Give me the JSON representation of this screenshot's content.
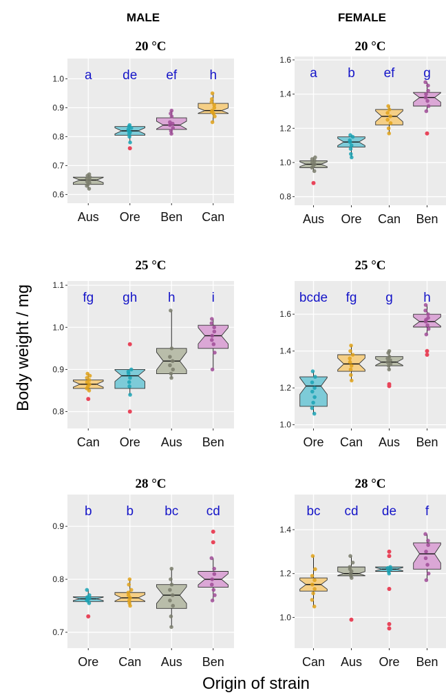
{
  "column_headers": {
    "male": "MALE",
    "female": "FEMALE"
  },
  "ylabel": "Body weight / mg",
  "xlabel": "Origin  of strain",
  "colors": {
    "Aus": "#b9bdaa",
    "Ore": "#7dcbd8",
    "Ben": "#dba7d6",
    "Can": "#f5cf86",
    "Aus_pt": "#7a7d6c",
    "Ore_pt": "#1aa3b5",
    "Ben_pt": "#a04c98",
    "Can_pt": "#e0a21a",
    "outlier": "#e8455a",
    "sig": "#1515c8",
    "panel_bg": "#ebebeb",
    "grid": "#ffffff"
  },
  "chart_data": [
    {
      "type": "box",
      "sex": "MALE",
      "title": "20 °C",
      "ylim": [
        0.57,
        1.07
      ],
      "yticks": [
        "0.6",
        "0.7",
        "0.8",
        "0.9",
        "1.0"
      ],
      "categories": [
        "Aus",
        "Ore",
        "Ben",
        "Can"
      ],
      "letters": [
        "a",
        "de",
        "ef",
        "h"
      ],
      "boxes": [
        {
          "q1": 0.635,
          "median": 0.65,
          "q3": 0.66,
          "wlo": 0.62,
          "whi": 0.67,
          "points": [
            0.62,
            0.63,
            0.635,
            0.64,
            0.645,
            0.65,
            0.655,
            0.66,
            0.665,
            0.67
          ],
          "outliers": []
        },
        {
          "q1": 0.805,
          "median": 0.82,
          "q3": 0.835,
          "wlo": 0.78,
          "whi": 0.84,
          "points": [
            0.78,
            0.8,
            0.81,
            0.815,
            0.82,
            0.825,
            0.83,
            0.835,
            0.84
          ],
          "outliers": [
            0.76
          ]
        },
        {
          "q1": 0.825,
          "median": 0.84,
          "q3": 0.865,
          "wlo": 0.81,
          "whi": 0.89,
          "points": [
            0.81,
            0.82,
            0.83,
            0.84,
            0.845,
            0.85,
            0.87,
            0.88,
            0.89
          ],
          "outliers": []
        },
        {
          "q1": 0.88,
          "median": 0.89,
          "q3": 0.915,
          "wlo": 0.85,
          "whi": 0.95,
          "points": [
            0.85,
            0.87,
            0.88,
            0.885,
            0.89,
            0.9,
            0.91,
            0.92,
            0.93,
            0.95
          ],
          "outliers": []
        }
      ]
    },
    {
      "type": "box",
      "sex": "FEMALE",
      "title": "20 °C",
      "ylim": [
        0.75,
        1.62
      ],
      "yticks": [
        "0.8",
        "1.0",
        "1.2",
        "1.4",
        "1.6"
      ],
      "categories": [
        "Aus",
        "Ore",
        "Can",
        "Ben"
      ],
      "letters": [
        "a",
        "b",
        "ef",
        "g"
      ],
      "boxes": [
        {
          "q1": 0.97,
          "median": 0.99,
          "q3": 1.01,
          "wlo": 0.95,
          "whi": 1.03,
          "points": [
            0.95,
            0.97,
            0.98,
            0.99,
            1.0,
            1.01,
            1.02,
            1.03
          ],
          "outliers": [
            0.88
          ]
        },
        {
          "q1": 1.09,
          "median": 1.12,
          "q3": 1.15,
          "wlo": 1.03,
          "whi": 1.16,
          "points": [
            1.03,
            1.05,
            1.08,
            1.1,
            1.12,
            1.13,
            1.15,
            1.16
          ],
          "outliers": []
        },
        {
          "q1": 1.22,
          "median": 1.27,
          "q3": 1.31,
          "wlo": 1.17,
          "whi": 1.33,
          "points": [
            1.17,
            1.2,
            1.23,
            1.25,
            1.27,
            1.29,
            1.31,
            1.33
          ],
          "outliers": []
        },
        {
          "q1": 1.33,
          "median": 1.38,
          "q3": 1.41,
          "wlo": 1.3,
          "whi": 1.47,
          "points": [
            1.3,
            1.33,
            1.36,
            1.38,
            1.4,
            1.42,
            1.45,
            1.47
          ],
          "outliers": [
            1.17
          ]
        }
      ]
    },
    {
      "type": "box",
      "sex": "MALE",
      "title": "25 °C",
      "ylim": [
        0.76,
        1.11
      ],
      "yticks": [
        "0.8",
        "0.9",
        "1.0",
        "1.1"
      ],
      "categories": [
        "Can",
        "Ore",
        "Aus",
        "Ben"
      ],
      "letters": [
        "fg",
        "gh",
        "h",
        "i"
      ],
      "boxes": [
        {
          "q1": 0.855,
          "median": 0.865,
          "q3": 0.875,
          "wlo": 0.85,
          "whi": 0.89,
          "points": [
            0.85,
            0.855,
            0.86,
            0.865,
            0.87,
            0.875,
            0.88,
            0.885,
            0.89
          ],
          "outliers": [
            0.83
          ]
        },
        {
          "q1": 0.855,
          "median": 0.885,
          "q3": 0.9,
          "wlo": 0.84,
          "whi": 0.9,
          "points": [
            0.84,
            0.86,
            0.87,
            0.88,
            0.89,
            0.895,
            0.9
          ],
          "outliers": [
            0.96,
            0.8
          ]
        },
        {
          "q1": 0.89,
          "median": 0.92,
          "q3": 0.95,
          "wlo": 0.88,
          "whi": 1.04,
          "points": [
            0.88,
            0.89,
            0.9,
            0.91,
            0.92,
            0.93,
            0.95,
            1.04
          ],
          "outliers": []
        },
        {
          "q1": 0.95,
          "median": 0.98,
          "q3": 1.005,
          "wlo": 0.9,
          "whi": 1.02,
          "points": [
            0.9,
            0.94,
            0.96,
            0.97,
            0.98,
            0.99,
            1.0,
            1.01,
            1.02
          ],
          "outliers": []
        }
      ]
    },
    {
      "type": "box",
      "sex": "FEMALE",
      "title": "25 °C",
      "ylim": [
        0.98,
        1.78
      ],
      "yticks": [
        "1.0",
        "1.2",
        "1.4",
        "1.6"
      ],
      "categories": [
        "Ore",
        "Can",
        "Aus",
        "Ben"
      ],
      "letters": [
        "bcde",
        "fg",
        "g",
        "h"
      ],
      "boxes": [
        {
          "q1": 1.1,
          "median": 1.21,
          "q3": 1.26,
          "wlo": 1.06,
          "whi": 1.29,
          "points": [
            1.06,
            1.09,
            1.12,
            1.15,
            1.18,
            1.2,
            1.23,
            1.26,
            1.29
          ],
          "outliers": []
        },
        {
          "q1": 1.29,
          "median": 1.33,
          "q3": 1.38,
          "wlo": 1.24,
          "whi": 1.43,
          "points": [
            1.24,
            1.27,
            1.3,
            1.32,
            1.34,
            1.36,
            1.38,
            1.4,
            1.43
          ],
          "outliers": []
        },
        {
          "q1": 1.32,
          "median": 1.34,
          "q3": 1.37,
          "wlo": 1.3,
          "whi": 1.4,
          "points": [
            1.3,
            1.32,
            1.33,
            1.34,
            1.35,
            1.36,
            1.37,
            1.39,
            1.4
          ],
          "outliers": [
            1.22,
            1.21
          ]
        },
        {
          "q1": 1.53,
          "median": 1.56,
          "q3": 1.6,
          "wlo": 1.49,
          "whi": 1.65,
          "points": [
            1.49,
            1.52,
            1.54,
            1.56,
            1.57,
            1.58,
            1.6,
            1.62,
            1.65
          ],
          "outliers": [
            1.4,
            1.38
          ]
        }
      ]
    },
    {
      "type": "box",
      "sex": "MALE",
      "title": "28 °C",
      "ylim": [
        0.67,
        0.96
      ],
      "yticks": [
        "0.7",
        "0.8",
        "0.9"
      ],
      "categories": [
        "Ore",
        "Can",
        "Aus",
        "Ben"
      ],
      "letters": [
        "b",
        "b",
        "bc",
        "cd"
      ],
      "boxes": [
        {
          "q1": 0.758,
          "median": 0.763,
          "q3": 0.767,
          "wlo": 0.755,
          "whi": 0.78,
          "points": [
            0.755,
            0.76,
            0.762,
            0.764,
            0.766,
            0.77,
            0.78
          ],
          "outliers": [
            0.73
          ]
        },
        {
          "q1": 0.758,
          "median": 0.765,
          "q3": 0.775,
          "wlo": 0.75,
          "whi": 0.8,
          "points": [
            0.75,
            0.755,
            0.76,
            0.765,
            0.77,
            0.775,
            0.78,
            0.79,
            0.8
          ],
          "outliers": []
        },
        {
          "q1": 0.745,
          "median": 0.77,
          "q3": 0.79,
          "wlo": 0.71,
          "whi": 0.82,
          "points": [
            0.71,
            0.73,
            0.75,
            0.76,
            0.77,
            0.78,
            0.79,
            0.8,
            0.82
          ],
          "outliers": []
        },
        {
          "q1": 0.785,
          "median": 0.8,
          "q3": 0.815,
          "wlo": 0.76,
          "whi": 0.84,
          "points": [
            0.76,
            0.77,
            0.78,
            0.79,
            0.8,
            0.81,
            0.82,
            0.84
          ],
          "outliers": [
            0.89,
            0.87
          ]
        }
      ]
    },
    {
      "type": "box",
      "sex": "FEMALE",
      "title": "28 °C",
      "ylim": [
        0.86,
        1.56
      ],
      "yticks": [
        "1.0",
        "1.2",
        "1.4"
      ],
      "categories": [
        "Can",
        "Aus",
        "Ore",
        "Ben"
      ],
      "letters": [
        "bc",
        "cd",
        "de",
        "f"
      ],
      "boxes": [
        {
          "q1": 1.12,
          "median": 1.15,
          "q3": 1.18,
          "wlo": 1.05,
          "whi": 1.28,
          "points": [
            1.05,
            1.08,
            1.11,
            1.13,
            1.15,
            1.17,
            1.19,
            1.22,
            1.28
          ],
          "outliers": []
        },
        {
          "q1": 1.19,
          "median": 1.2,
          "q3": 1.23,
          "wlo": 1.18,
          "whi": 1.28,
          "points": [
            1.18,
            1.19,
            1.2,
            1.21,
            1.22,
            1.23,
            1.25,
            1.28
          ],
          "outliers": [
            0.99
          ]
        },
        {
          "q1": 1.21,
          "median": 1.22,
          "q3": 1.23,
          "wlo": 1.2,
          "whi": 1.23,
          "points": [
            1.2,
            1.21,
            1.22,
            1.225,
            1.23
          ],
          "outliers": [
            1.3,
            1.28,
            1.13,
            0.97,
            0.95
          ]
        },
        {
          "q1": 1.22,
          "median": 1.29,
          "q3": 1.34,
          "wlo": 1.17,
          "whi": 1.38,
          "points": [
            1.17,
            1.2,
            1.24,
            1.27,
            1.3,
            1.33,
            1.35,
            1.38
          ],
          "outliers": []
        }
      ]
    }
  ]
}
